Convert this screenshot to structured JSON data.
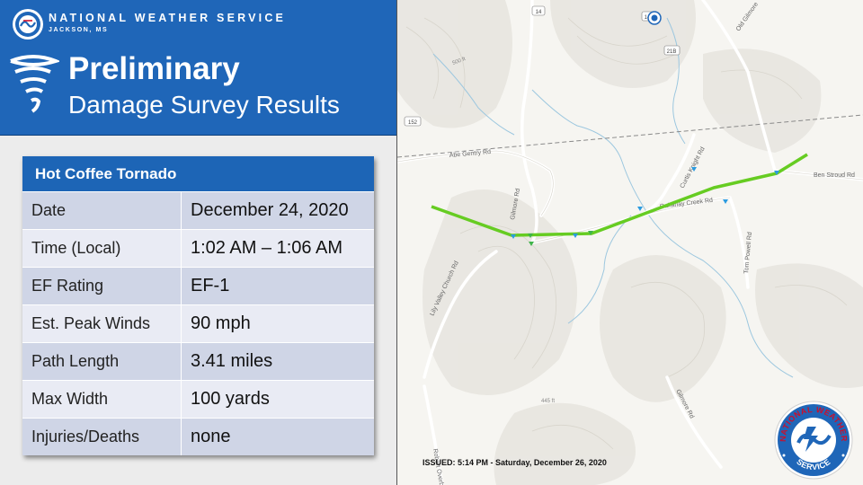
{
  "header": {
    "agency": "NATIONAL WEATHER SERVICE",
    "office": "JACKSON, MS",
    "title_line1": "Preliminary",
    "title_line2": "Damage Survey Results"
  },
  "card": {
    "title": "Hot Coffee Tornado",
    "rows": [
      {
        "label": "Date",
        "value": "December 24, 2020"
      },
      {
        "label": "Time (Local)",
        "value": "1:02 AM – 1:06 AM"
      },
      {
        "label": "EF Rating",
        "value": "EF-1"
      },
      {
        "label": "Est. Peak Winds",
        "value": "90 mph"
      },
      {
        "label": "Path Length",
        "value": "3.41 miles"
      },
      {
        "label": "Max Width",
        "value": "100 yards"
      },
      {
        "label": "Injuries/Deaths",
        "value": "none"
      }
    ]
  },
  "map": {
    "roads": {
      "abe_gentry": "Abe Gentry Rd",
      "gilmore": "Gilmore Rd",
      "curtis_knight": "Curtis Knight Rd",
      "ben_stroud": "Ben Stroud Rd",
      "oakahay_creek": "Oakahay Creek Rd",
      "lily_valley": "Lily Valley Church Rd",
      "tom_powell": "Tom Powell Rd",
      "robert_overby": "Robert Overby Rd",
      "gilmore_south": "Gilmore Rd",
      "old_gilmore": "Old Gilmore"
    },
    "elevations": {
      "e1": "500 ft",
      "e2": "445 ft"
    },
    "shields": {
      "s14": "14",
      "s14b": "14B",
      "s21b": "21B",
      "s152": "152"
    },
    "colors": {
      "track": "#66cc22",
      "damage_point": "#2b9be0"
    }
  },
  "issued": "ISSUED: 5:14 PM - Saturday, December 26, 2020",
  "seal": {
    "top_text": "NATIONAL WEATHER",
    "bottom_text": "SERVICE"
  }
}
